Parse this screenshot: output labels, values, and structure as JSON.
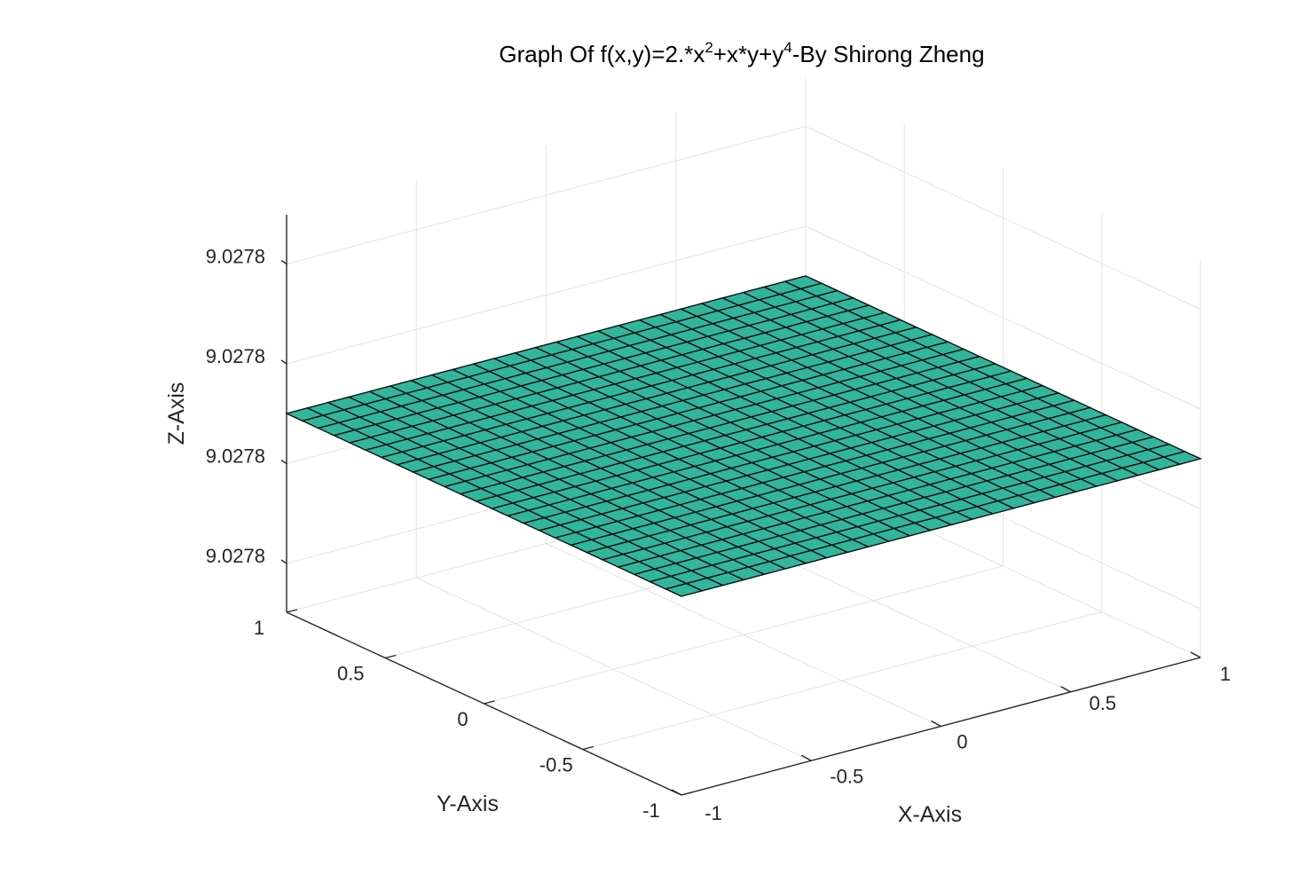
{
  "chart_data": {
    "type": "surface",
    "title": {
      "prefix": "Graph Of f(x,y)=2.*x",
      "sup1": "2",
      "middle": "+x*y+y",
      "sup2": "4",
      "suffix": "-By Shirong Zheng"
    },
    "xlabel": "X-Axis",
    "ylabel": "Y-Axis",
    "zlabel": "Z-Axis",
    "xlim": [
      -1,
      1
    ],
    "ylim": [
      -1,
      1
    ],
    "x_ticks": [
      "-1",
      "-0.5",
      "0",
      "0.5",
      "1"
    ],
    "y_ticks": [
      "-1",
      "-0.5",
      "0",
      "0.5",
      "1"
    ],
    "z_ticks": [
      "9.0278",
      "9.0278",
      "9.0278",
      "9.0278"
    ],
    "z_value": 9.0278,
    "mesh_size": [
      26,
      26
    ],
    "grid": true,
    "box": false,
    "colors": {
      "surface": "#32b69b",
      "edge": "#111111",
      "grid": "#e3e3e3",
      "axis": "#262626"
    }
  }
}
